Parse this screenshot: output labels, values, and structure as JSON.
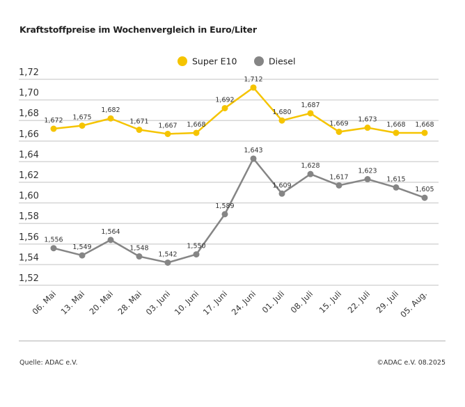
{
  "chart_data": {
    "type": "line",
    "title": "Kraftstoffpreise im Wochenvergleich in Euro/Liter",
    "xlabel": "",
    "ylabel": "",
    "categories": [
      "06. Mai",
      "13. Mai",
      "20. Mai",
      "28. Mai",
      "03. Juni",
      "10. Juni",
      "17. Juni",
      "24. Juni",
      "01. Juli",
      "08. Juli",
      "15. Juli",
      "22. Juli",
      "29. Juli",
      "05. Aug."
    ],
    "ylim": [
      1.52,
      1.72
    ],
    "yticks": [
      "1,52",
      "1,54",
      "1,56",
      "1,58",
      "1,60",
      "1,62",
      "1,64",
      "1,66",
      "1,68",
      "1,70",
      "1,72"
    ],
    "grid": true,
    "legend_placement": "top-center",
    "series": [
      {
        "name": "Super E10",
        "color": "#f5c400",
        "values": [
          1.672,
          1.675,
          1.682,
          1.671,
          1.667,
          1.668,
          1.692,
          1.712,
          1.68,
          1.687,
          1.669,
          1.673,
          1.668,
          1.668
        ],
        "labels": [
          "1,672",
          "1,675",
          "1,682",
          "1,671",
          "1,667",
          "1,668",
          "1,692",
          "1,712",
          "1,680",
          "1,687",
          "1,669",
          "1,673",
          "1,668",
          "1,668"
        ]
      },
      {
        "name": "Diesel",
        "color": "#858585",
        "values": [
          1.556,
          1.549,
          1.564,
          1.548,
          1.542,
          1.55,
          1.589,
          1.643,
          1.609,
          1.628,
          1.617,
          1.623,
          1.615,
          1.605
        ],
        "labels": [
          "1,556",
          "1,549",
          "1,564",
          "1,548",
          "1,542",
          "1,550",
          "1,589",
          "1,643",
          "1,609",
          "1,628",
          "1,617",
          "1,623",
          "1,615",
          "1,605"
        ]
      }
    ]
  },
  "footer": {
    "source": "Quelle: ADAC e.V.",
    "copyright": "©ADAC e.V. 08.2025"
  }
}
